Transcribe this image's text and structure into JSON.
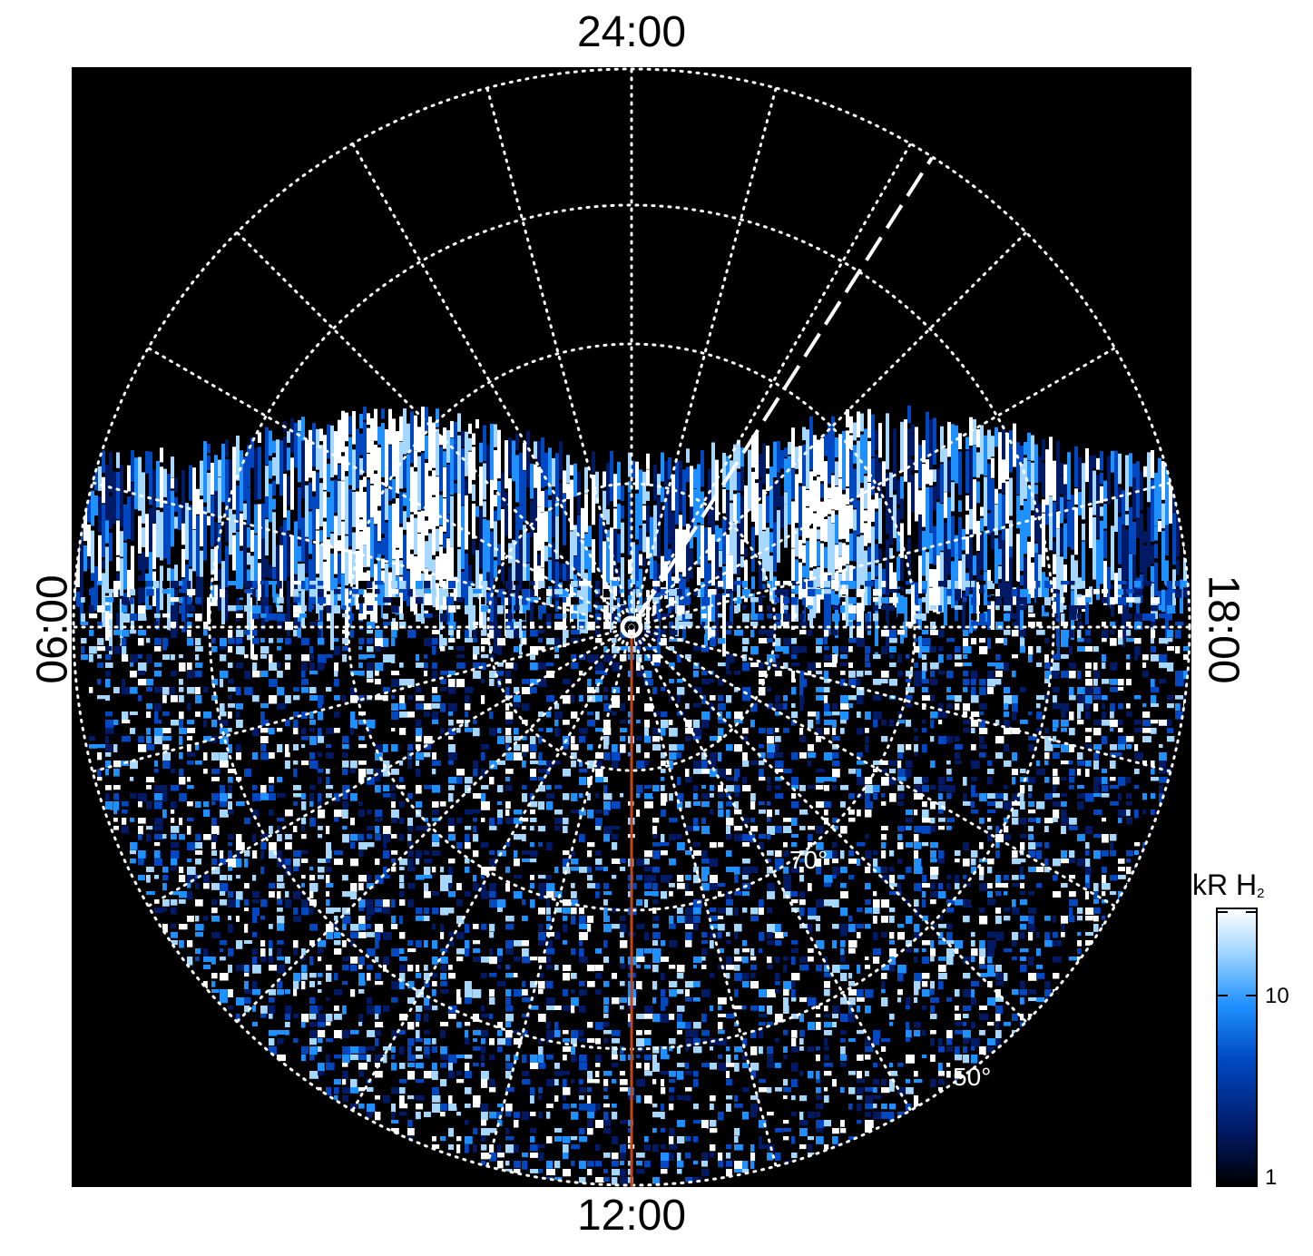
{
  "orientation_labels": {
    "top": "24:00",
    "bottom": "12:00",
    "left": "06:00",
    "right": "18:00"
  },
  "latitude_labels": [
    "70°",
    "50°"
  ],
  "colorbar": {
    "title": "kR H",
    "subscript": "2",
    "scale": "log",
    "range": [
      1,
      30
    ],
    "tick_labels": [
      "10",
      "1"
    ],
    "colors": [
      "#000000",
      "#001a66",
      "#0047c2",
      "#1e90ff",
      "#a6d8ff",
      "#ffffff"
    ]
  },
  "colors": {
    "background": "#000000",
    "grid": "#ffffff",
    "meridian_line": "#c0461c"
  }
}
